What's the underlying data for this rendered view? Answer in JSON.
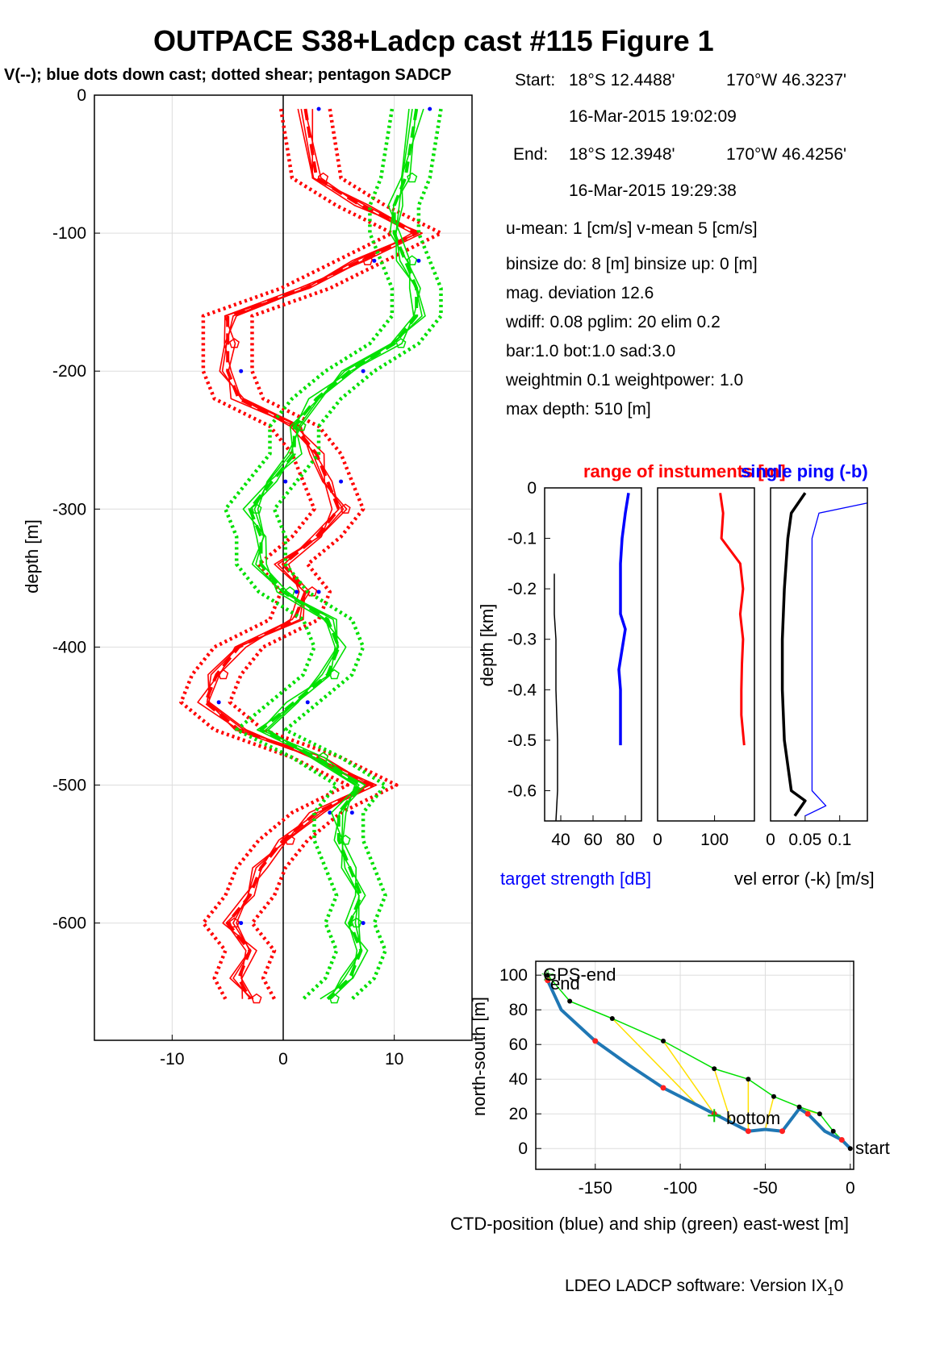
{
  "figure": {
    "title": "OUTPACE S38+Ladcp cast #115  Figure 1",
    "subtitle": "V(--); blue dots down cast; dotted shear; pentagon SADCP",
    "footer": "LDEO LADCP software: Version IX",
    "footer_sub": "1",
    "footer_tail": "0"
  },
  "info": {
    "start_label": "Start:",
    "start_lat": "18°S 12.4488'",
    "start_lon": "170°W 46.3237'",
    "start_time": "16-Mar-2015 19:02:09",
    "end_label": "End:",
    "end_lat": "18°S 12.3948'",
    "end_lon": "170°W 46.4256'",
    "end_time": "16-Mar-2015 19:29:38",
    "lines": [
      "u-mean:   1 [cm/s]    v-mean   5 [cm/s]",
      "binsize do: 8 [m]  binsize up:  0 [m]",
      "mag. deviation 12.6",
      "wdiff: 0.08  pglim: 20  elim 0.2",
      "  bar:1.0 bot:1.0 sad:3.0",
      "weightmin 0.1  weightpower: 1.0",
      "max depth: 510 [m]"
    ]
  },
  "colors": {
    "u": "#ff0000",
    "v": "#00e000",
    "blue": "#0000ff",
    "track_blue": "#1f77b4",
    "yellow": "#ffe000"
  },
  "chart_data": [
    {
      "id": "velocity-profile",
      "type": "line",
      "ylabel": "depth [m]",
      "xlim": [
        -17,
        17
      ],
      "ylim": [
        -685,
        0
      ],
      "xticks": [
        -10,
        0,
        10
      ],
      "yticks": [
        0,
        -100,
        -200,
        -300,
        -400,
        -500,
        -600
      ],
      "grid": true,
      "series": [
        {
          "color": "#ff0000",
          "depth": [
            -10,
            -60,
            -80,
            -100,
            -120,
            -140,
            -160,
            -180,
            -200,
            -220,
            -240,
            -260,
            -280,
            -300,
            -320,
            -340,
            -360,
            -380,
            -400,
            -420,
            -440,
            -460,
            -480,
            -500,
            -520,
            -540,
            -560,
            -580,
            -600,
            -620,
            -640,
            -655
          ],
          "x": [
            2,
            3,
            7,
            12,
            7,
            2,
            -5,
            -5,
            -5,
            -4,
            1,
            3,
            4,
            5,
            3,
            0,
            2,
            1,
            -4,
            -6,
            -7,
            -4,
            3,
            8,
            3,
            0,
            -2,
            -3,
            -5,
            -3,
            -4,
            -3
          ]
        },
        {
          "color": "#00e000",
          "depth": [
            -10,
            -60,
            -80,
            -100,
            -120,
            -140,
            -160,
            -180,
            -200,
            -220,
            -240,
            -260,
            -280,
            -300,
            -320,
            -340,
            -360,
            -380,
            -400,
            -420,
            -440,
            -460,
            -480,
            -500,
            -520,
            -540,
            -560,
            -580,
            -600,
            -620,
            -640,
            -655
          ],
          "x": [
            12,
            11,
            10,
            10,
            11,
            12,
            12,
            10,
            6,
            3,
            1,
            1,
            -1,
            -3,
            -2,
            -2,
            0,
            4,
            5,
            4,
            1,
            -2,
            3,
            7,
            5,
            5,
            6,
            7,
            6,
            7,
            6,
            4
          ]
        }
      ]
    },
    {
      "id": "target-strength",
      "type": "line",
      "title": "range of instuments [m]",
      "xlabel": "target strength [dB]",
      "ylabel": "depth [km]",
      "xlim": [
        30,
        90
      ],
      "ylim": [
        -0.66,
        0
      ],
      "xticks": [
        40,
        60,
        80
      ],
      "yticks": [
        0,
        -0.1,
        -0.2,
        -0.3,
        -0.4,
        -0.5,
        -0.6
      ],
      "series": [
        {
          "color": "#0000ff",
          "depth": [
            -0.01,
            -0.05,
            -0.1,
            -0.15,
            -0.2,
            -0.25,
            -0.28,
            -0.32,
            -0.36,
            -0.4,
            -0.45,
            -0.51
          ],
          "x": [
            82,
            80,
            78,
            77,
            77,
            77,
            80,
            78,
            76,
            77,
            77,
            77
          ]
        },
        {
          "color": "#000000",
          "depth": [
            -0.17,
            -0.25,
            -0.3,
            -0.4,
            -0.5,
            -0.6,
            -0.66
          ],
          "x": [
            36,
            36,
            37,
            37,
            38,
            38,
            37
          ]
        }
      ]
    },
    {
      "id": "range",
      "type": "line",
      "xlim": [
        0,
        170
      ],
      "ylim": [
        -0.66,
        0
      ],
      "xticks": [
        0,
        100
      ],
      "series": [
        {
          "color": "#ff0000",
          "depth": [
            -0.01,
            -0.05,
            -0.1,
            -0.15,
            -0.2,
            -0.25,
            -0.3,
            -0.35,
            -0.4,
            -0.45,
            -0.51
          ],
          "x": [
            110,
            115,
            112,
            145,
            150,
            145,
            150,
            148,
            147,
            147,
            152
          ]
        }
      ]
    },
    {
      "id": "vel-error",
      "type": "line",
      "title": "single ping (-b)",
      "xlabel": "vel error (-k) [m/s]",
      "xlim": [
        0,
        0.14
      ],
      "ylim": [
        -0.66,
        0
      ],
      "xticks": [
        0,
        0.05,
        0.1
      ],
      "xticklabels": [
        "0",
        "0.05",
        "0.1"
      ],
      "series": [
        {
          "color": "#0000ff",
          "depth": [
            -0.03,
            -0.05,
            -0.1,
            -0.2,
            -0.3,
            -0.4,
            -0.5,
            -0.6,
            -0.63,
            -0.65
          ],
          "x": [
            0.14,
            0.07,
            0.06,
            0.06,
            0.06,
            0.06,
            0.06,
            0.06,
            0.08,
            0.05
          ]
        },
        {
          "color": "#000000",
          "depth": [
            -0.01,
            -0.05,
            -0.1,
            -0.2,
            -0.3,
            -0.4,
            -0.5,
            -0.6,
            -0.62,
            -0.65
          ],
          "x": [
            0.05,
            0.03,
            0.025,
            0.02,
            0.017,
            0.017,
            0.02,
            0.03,
            0.05,
            0.035
          ]
        }
      ]
    },
    {
      "id": "ctd-track",
      "type": "line",
      "xlabel": "CTD-position (blue) and ship (green) east-west [m]",
      "ylabel": "north-south [m]",
      "xlim": [
        -185,
        2
      ],
      "ylim": [
        -12,
        108
      ],
      "xticks": [
        -150,
        -100,
        -50,
        0
      ],
      "yticks": [
        0,
        20,
        40,
        60,
        80,
        100
      ],
      "grid": true,
      "annotations": [
        "GPS-end",
        "end",
        "bottom",
        "start"
      ],
      "series": [
        {
          "color": "#1f77b4",
          "x": [
            0,
            -5,
            -15,
            -25,
            -30,
            -40,
            -50,
            -60,
            -70,
            -80,
            -90,
            -110,
            -130,
            -150,
            -170,
            -178
          ],
          "y": [
            0,
            5,
            10,
            20,
            23,
            10,
            11,
            10,
            15,
            20,
            25,
            35,
            48,
            62,
            80,
            97
          ]
        },
        {
          "color": "#00e000",
          "x": [
            0,
            -10,
            -18,
            -30,
            -45,
            -60,
            -80,
            -110,
            -140,
            -165,
            -178
          ],
          "y": [
            0,
            10,
            20,
            24,
            30,
            40,
            46,
            62,
            75,
            85,
            100
          ]
        }
      ]
    }
  ]
}
